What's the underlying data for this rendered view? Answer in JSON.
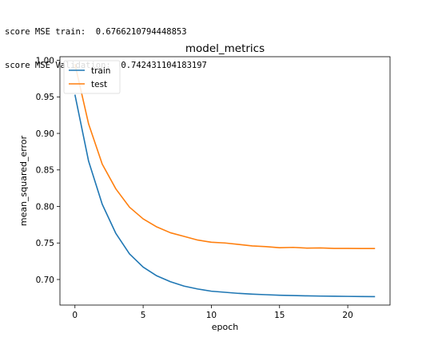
{
  "output": {
    "line1": "score MSE train:  0.6766210794448853",
    "line2": "score MSE Validation:  0.742431104183197"
  },
  "chart_data": {
    "type": "line",
    "title": "model_metrics",
    "xlabel": "epoch",
    "ylabel": "mean_squared_error",
    "xlim": [
      -1.1,
      23.1
    ],
    "ylim": [
      0.665,
      1.005
    ],
    "xticks": [
      0,
      5,
      10,
      15,
      20
    ],
    "yticks": [
      0.7,
      0.75,
      0.8,
      0.85,
      0.9,
      0.95,
      1.0
    ],
    "grid": false,
    "legend_position": "upper-left",
    "x": [
      0,
      1,
      2,
      3,
      4,
      5,
      6,
      7,
      8,
      9,
      10,
      11,
      12,
      13,
      14,
      15,
      16,
      17,
      18,
      19,
      20,
      21,
      22
    ],
    "series": [
      {
        "name": "train",
        "color": "#1f77b4",
        "values": [
          0.953,
          0.862,
          0.803,
          0.763,
          0.735,
          0.717,
          0.705,
          0.697,
          0.691,
          0.687,
          0.684,
          0.6825,
          0.681,
          0.68,
          0.6792,
          0.6785,
          0.678,
          0.6776,
          0.6773,
          0.6771,
          0.6769,
          0.6767,
          0.6766
        ]
      },
      {
        "name": "test",
        "color": "#ff7f0e",
        "values": [
          0.995,
          0.913,
          0.858,
          0.824,
          0.799,
          0.783,
          0.772,
          0.764,
          0.759,
          0.754,
          0.751,
          0.75,
          0.748,
          0.746,
          0.745,
          0.7435,
          0.744,
          0.743,
          0.7432,
          0.7425,
          0.7426,
          0.7424,
          0.7424
        ]
      }
    ]
  }
}
